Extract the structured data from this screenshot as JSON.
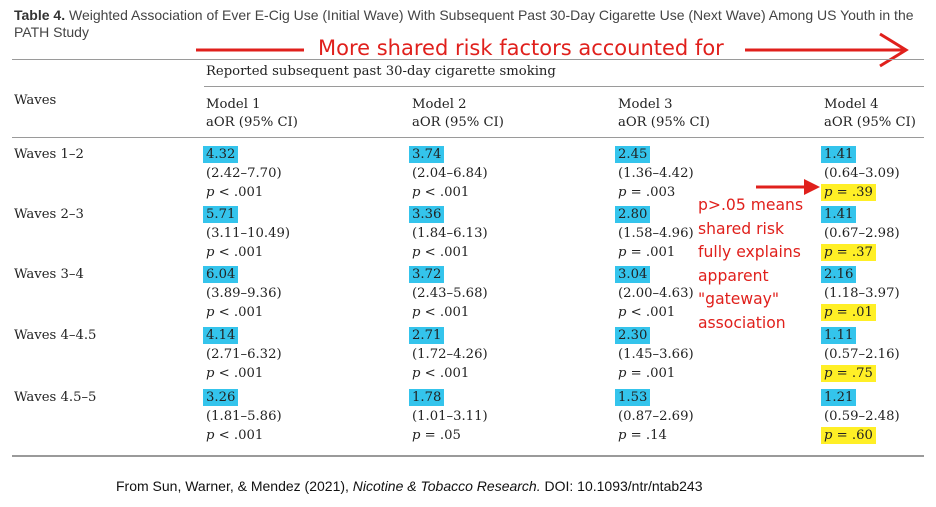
{
  "caption": {
    "label": "Table 4.",
    "title": "Weighted Association of Ever E-Cig Use (Initial Wave) With Subsequent Past 30-Day Cigarette Use (Next Wave) Among US Youth in the PATH Study"
  },
  "annotation_header": "More shared risk factors accounted for",
  "table": {
    "spanner": "Reported subsequent past 30-day cigarette smoking",
    "waves_header": "Waves",
    "models": [
      {
        "name": "Model 1",
        "stat": "aOR (95% CI)"
      },
      {
        "name": "Model 2",
        "stat": "aOR (95% CI)"
      },
      {
        "name": "Model 3",
        "stat": "aOR (95% CI)"
      },
      {
        "name": "Model 4",
        "stat": "aOR (95% CI)"
      }
    ],
    "rows": [
      {
        "waves": "Waves 1–2",
        "cells": [
          {
            "aor": "4.32",
            "ci": "(2.42–7.70)",
            "p": "< .001"
          },
          {
            "aor": "3.74",
            "ci": "(2.04–6.84)",
            "p": "< .001"
          },
          {
            "aor": "2.45",
            "ci": "(1.36–4.42)",
            "p": "= .003"
          },
          {
            "aor": "1.41",
            "ci": "(0.64–3.09)",
            "p": "= .39"
          }
        ]
      },
      {
        "waves": "Waves 2–3",
        "cells": [
          {
            "aor": "5.71",
            "ci": "(3.11–10.49)",
            "p": "< .001"
          },
          {
            "aor": "3.36",
            "ci": "(1.84–6.13)",
            "p": "< .001"
          },
          {
            "aor": "2.80",
            "ci": "(1.58–4.96)",
            "p": "= .001"
          },
          {
            "aor": "1.41",
            "ci": "(0.67–2.98)",
            "p": "= .37"
          }
        ]
      },
      {
        "waves": "Waves 3–4",
        "cells": [
          {
            "aor": "6.04",
            "ci": "(3.89–9.36)",
            "p": "< .001"
          },
          {
            "aor": "3.72",
            "ci": "(2.43–5.68)",
            "p": "< .001"
          },
          {
            "aor": "3.04",
            "ci": "(2.00–4.63)",
            "p": "< .001"
          },
          {
            "aor": "2.16",
            "ci": "(1.18–3.97)",
            "p": "= .01"
          }
        ]
      },
      {
        "waves": "Waves 4–4.5",
        "cells": [
          {
            "aor": "4.14",
            "ci": "(2.71–6.32)",
            "p": "< .001"
          },
          {
            "aor": "2.71",
            "ci": "(1.72–4.26)",
            "p": "< .001"
          },
          {
            "aor": "2.30",
            "ci": "(1.45–3.66)",
            "p": "= .001"
          },
          {
            "aor": "1.11",
            "ci": "(0.57–2.16)",
            "p": "= .75"
          }
        ]
      },
      {
        "waves": "Waves 4.5–5",
        "cells": [
          {
            "aor": "3.26",
            "ci": "(1.81–5.86)",
            "p": "< .001"
          },
          {
            "aor": "1.78",
            "ci": "(1.01–3.11)",
            "p": "= .05"
          },
          {
            "aor": "1.53",
            "ci": "(0.87–2.69)",
            "p": "= .14"
          },
          {
            "aor": "1.21",
            "ci": "(0.59–2.48)",
            "p": "= .60"
          }
        ]
      }
    ],
    "p_symbol": "p"
  },
  "side_note": [
    "p>.05 means",
    "shared risk",
    "fully explains",
    "apparent",
    "\"gateway\"",
    "association"
  ],
  "footer": {
    "prefix": "From Sun, Warner, & Mendez (2021), ",
    "journal": "Nicotine & Tobacco Research.",
    "doi": " DOI: 10.1093/ntr/ntab243"
  },
  "colors": {
    "annotation": "#e0201c",
    "highlight_estimate": "#34c4ec",
    "highlight_p": "#ffef26"
  }
}
